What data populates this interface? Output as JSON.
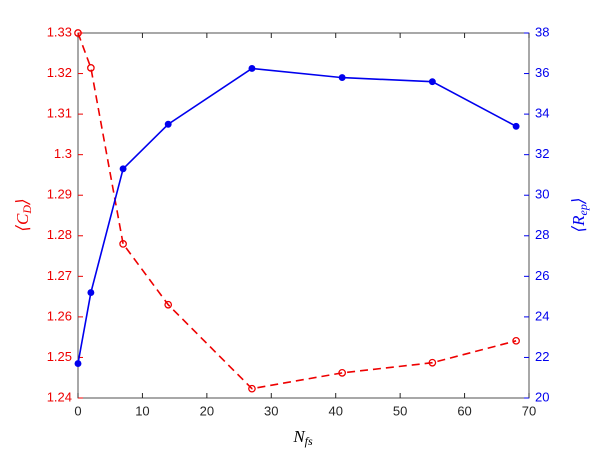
{
  "chart_data": {
    "type": "line",
    "xlabel": {
      "text": "N",
      "sub": "fs"
    },
    "ylabel": {
      "open": "⟨",
      "text": "C",
      "sub": "D",
      "close": "⟩"
    },
    "y2label": {
      "open": "⟨",
      "text": "R",
      "sub": "ep",
      "close": "⟩"
    },
    "x": [
      0,
      2,
      7,
      14,
      27,
      41,
      55,
      68
    ],
    "series": [
      {
        "name": "C_D",
        "color": "#ee0000",
        "axis": "y",
        "linestyle": "dashed",
        "marker": "open-circle",
        "values": [
          1.33,
          1.3214,
          1.278,
          1.263,
          1.2423,
          1.2462,
          1.2487,
          1.2541
        ]
      },
      {
        "name": "R_ep",
        "color": "#0000ee",
        "axis": "y2",
        "linestyle": "solid",
        "marker": "filled-dot",
        "values": [
          21.7,
          25.2,
          31.3,
          33.5,
          36.25,
          35.8,
          35.6,
          33.4
        ]
      }
    ],
    "xlim": [
      0,
      70
    ],
    "xticks": [
      0,
      10,
      20,
      30,
      40,
      50,
      60,
      70
    ],
    "ylim": [
      1.24,
      1.33
    ],
    "yticks": [
      1.24,
      1.25,
      1.26,
      1.27,
      1.28,
      1.29,
      1.3,
      1.31,
      1.32,
      1.33
    ],
    "y2lim": [
      20,
      38
    ],
    "y2ticks": [
      20,
      22,
      24,
      26,
      28,
      30,
      32,
      34,
      36,
      38
    ],
    "grid": false
  }
}
